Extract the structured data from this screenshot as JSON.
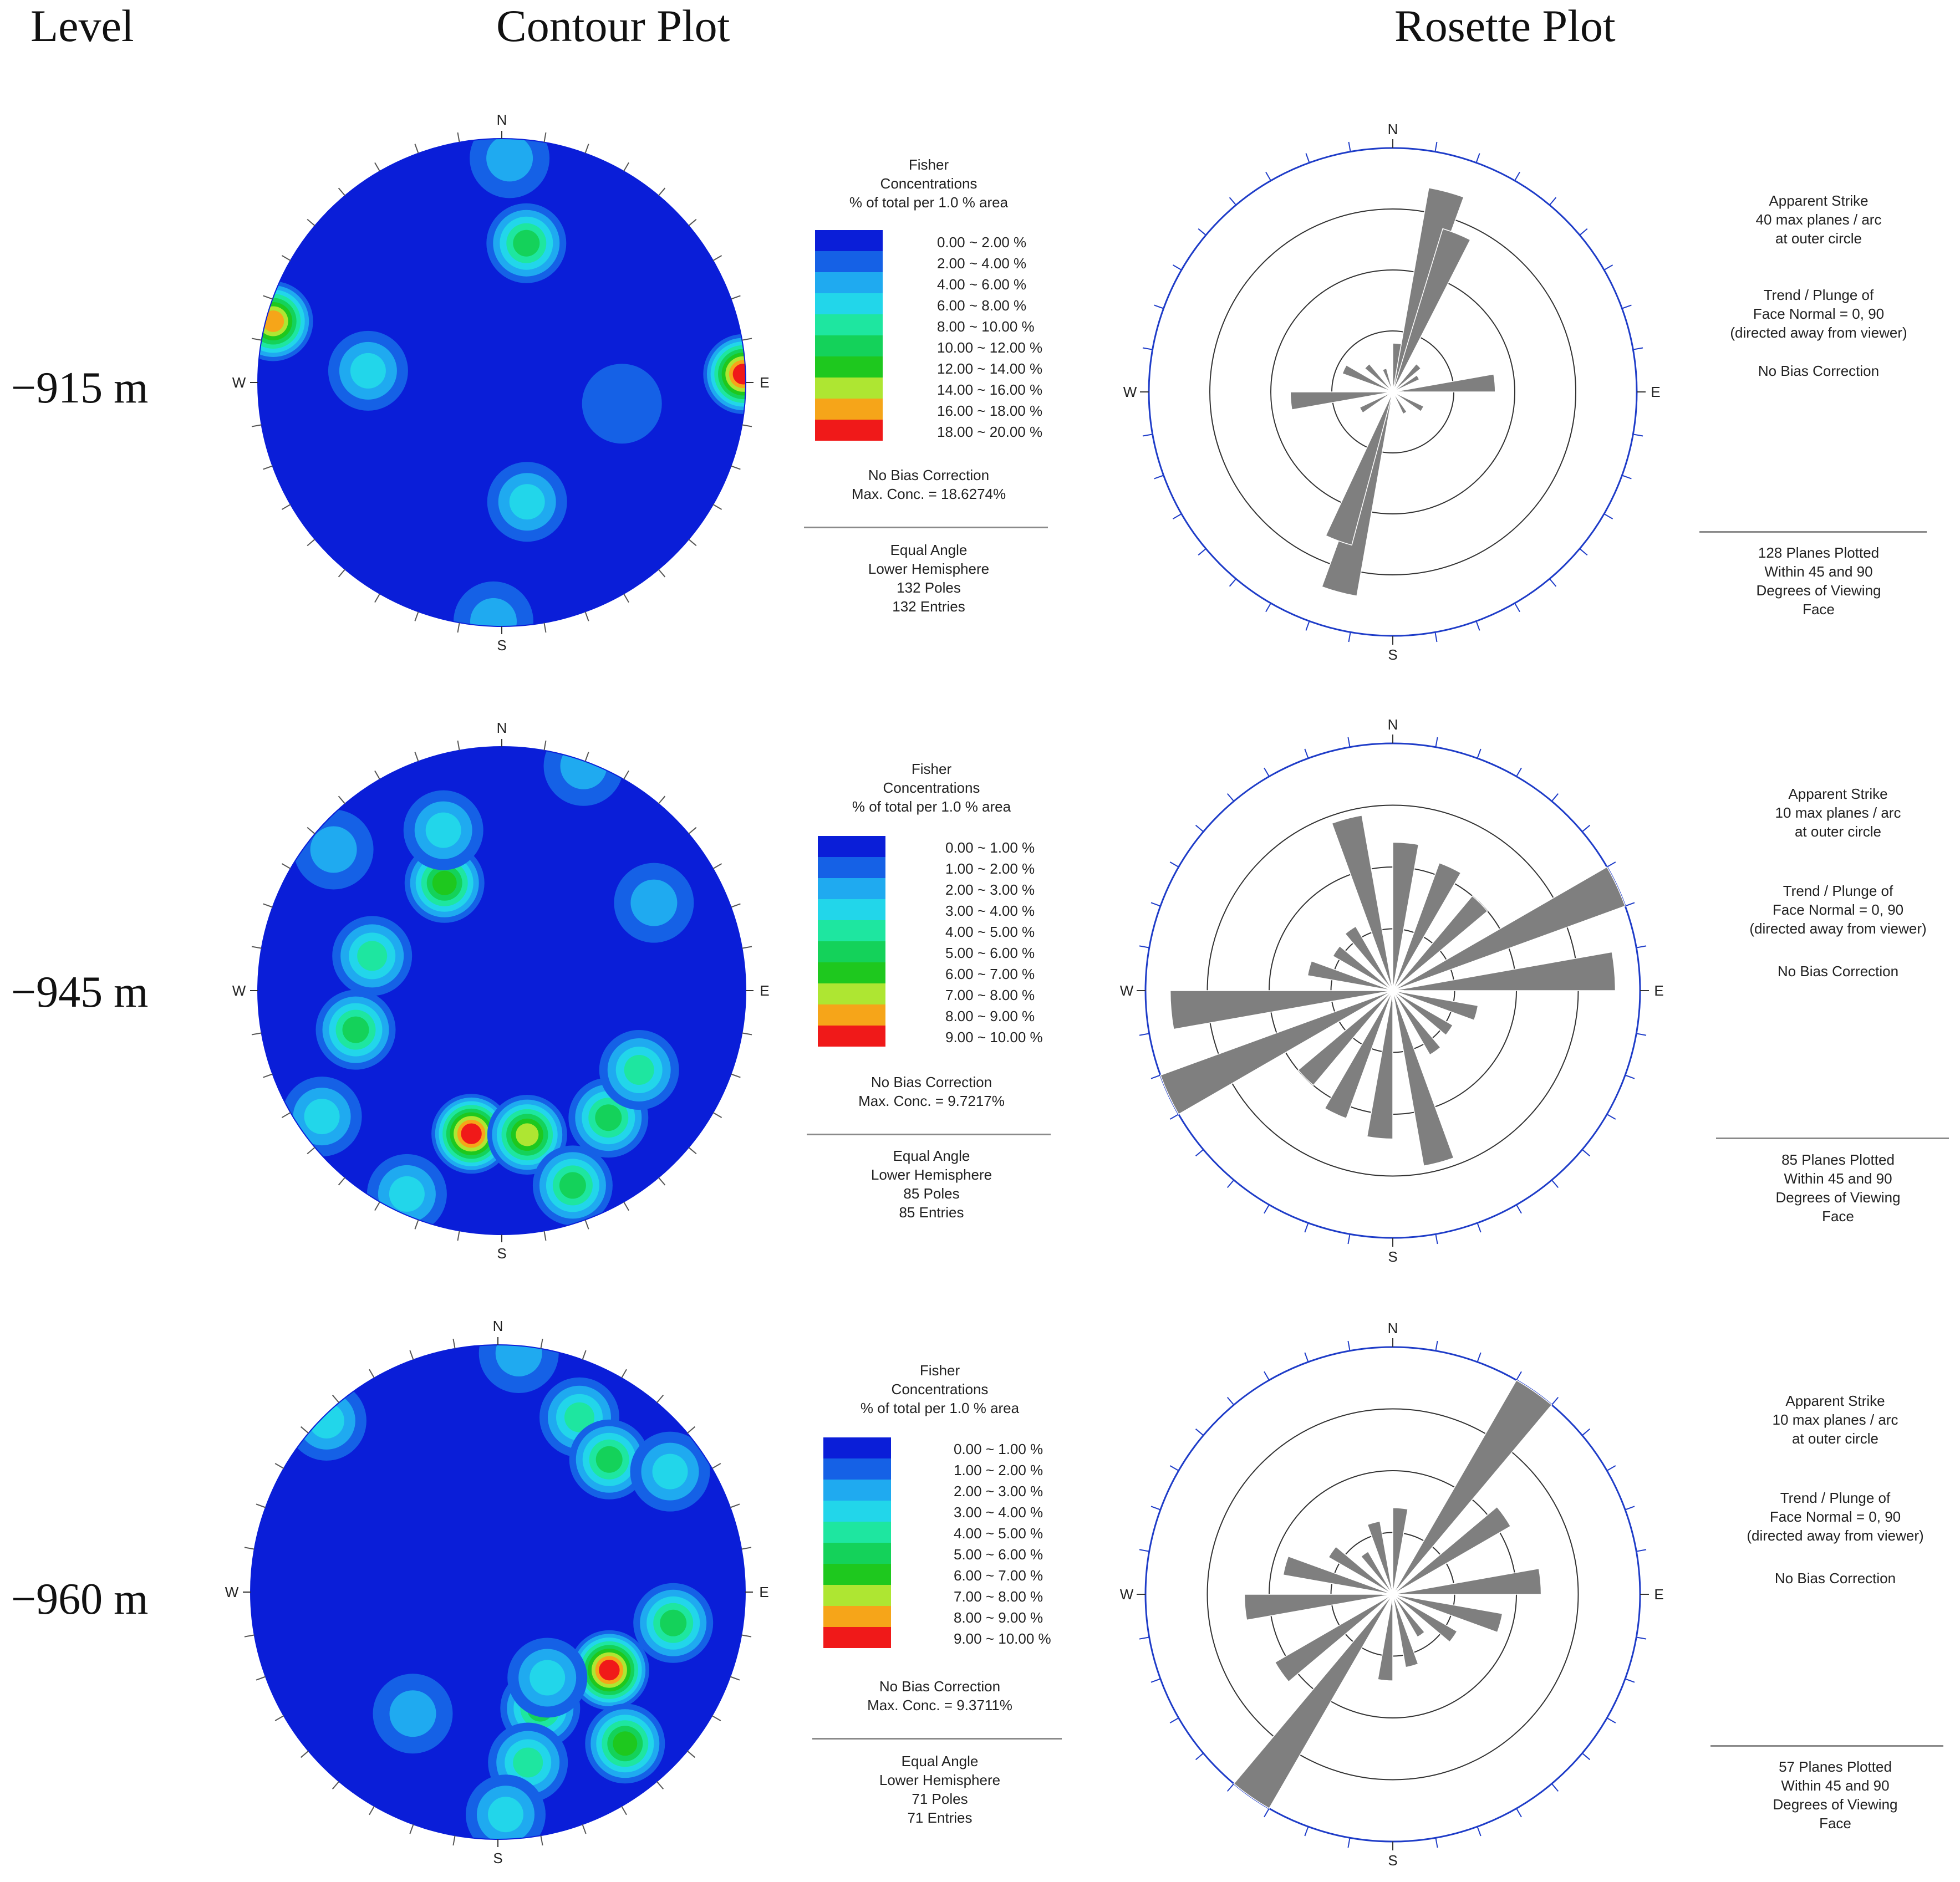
{
  "headers": {
    "level": "Level",
    "contour": "Contour Plot",
    "rosette": "Rosette Plot"
  },
  "colors": {
    "contour_scale": [
      "#0a1ed8",
      "#1561e6",
      "#1faaf0",
      "#22d6ea",
      "#1ee6a0",
      "#14d25a",
      "#1ec81e",
      "#aee632",
      "#f6a519",
      "#f01919"
    ],
    "rose_petal": "#7f7f7f",
    "outer_ring": "#1e3cc8",
    "ring": "#333333"
  },
  "compass": {
    "n": "N",
    "s": "S",
    "e": "E",
    "w": "W"
  },
  "rows": [
    {
      "level": "−915 m",
      "legend_title": [
        "Fisher",
        "Concentrations",
        "% of total per 1.0 % area"
      ],
      "legend_ranges": [
        "0.00 ~  2.00 %",
        "2.00 ~  4.00 %",
        "4.00 ~  6.00 %",
        "6.00 ~  8.00 %",
        "8.00 ~ 10.00 %",
        "10.00 ~ 12.00 %",
        "12.00 ~ 14.00 %",
        "14.00 ~ 16.00 %",
        "16.00 ~ 18.00 %",
        "18.00 ~ 20.00 %"
      ],
      "bias": "No Bias Correction",
      "max_conc": "Max. Conc. = 18.6274%",
      "projection": [
        "Equal Angle",
        "Lower Hemisphere",
        "132 Poles",
        "132 Entries"
      ],
      "rose_info_top": [
        "Apparent Strike",
        "40 max planes / arc",
        "at outer circle"
      ],
      "rose_info_trend": [
        "Trend / Plunge of",
        "Face Normal =   0, 90",
        "(directed away from viewer)"
      ],
      "rose_bias": "No Bias Correction",
      "rose_info_bottom": [
        "128 Planes Plotted",
        "Within 45 and 90",
        "Degrees of Viewing",
        "Face"
      ],
      "contour_clusters": [
        {
          "trend": 88,
          "r": 0.99,
          "peak": 9
        },
        {
          "trend": 285,
          "r": 0.97,
          "peak": 8
        },
        {
          "trend": 2,
          "r": 0.92,
          "peak": 2
        },
        {
          "trend": 10,
          "r": 0.58,
          "peak": 5
        },
        {
          "trend": 100,
          "r": 0.5,
          "peak": 1
        },
        {
          "trend": 168,
          "r": 0.5,
          "peak": 3
        },
        {
          "trend": 275,
          "r": 0.55,
          "peak": 3
        },
        {
          "trend": 182,
          "r": 0.98,
          "peak": 2
        }
      ],
      "rose_petals": [
        {
          "strike": 15,
          "length": 0.85
        },
        {
          "strike": 22,
          "length": 0.7
        },
        {
          "strike": 195,
          "length": 0.85
        },
        {
          "strike": 200,
          "length": 0.65
        },
        {
          "strike": 85,
          "length": 0.42
        },
        {
          "strike": 265,
          "length": 0.42
        },
        {
          "strike": 5,
          "length": 0.2
        },
        {
          "strike": 45,
          "length": 0.15
        },
        {
          "strike": 60,
          "length": 0.12
        },
        {
          "strike": 120,
          "length": 0.14
        },
        {
          "strike": 150,
          "length": 0.1
        },
        {
          "strike": 240,
          "length": 0.15
        },
        {
          "strike": 295,
          "length": 0.22
        },
        {
          "strike": 315,
          "length": 0.15
        },
        {
          "strike": 340,
          "length": 0.1
        }
      ]
    },
    {
      "level": "−945 m",
      "legend_title": [
        "Fisher",
        "Concentrations",
        "% of total per 1.0 % area"
      ],
      "legend_ranges": [
        "0.00 ~  1.00 %",
        "1.00 ~  2.00 %",
        "2.00 ~  3.00 %",
        "3.00 ~  4.00 %",
        "4.00 ~  5.00 %",
        "5.00 ~  6.00 %",
        "6.00 ~  7.00 %",
        "7.00 ~  8.00 %",
        "8.00 ~  9.00 %",
        "9.00 ~ 10.00 %"
      ],
      "bias": "No Bias Correction",
      "max_conc": "Max. Conc. = 9.7217%",
      "projection": [
        "Equal Angle",
        "Lower Hemisphere",
        "85 Poles",
        "85 Entries"
      ],
      "rose_info_top": [
        "Apparent Strike",
        "10 max planes / arc",
        "at outer circle"
      ],
      "rose_info_trend": [
        "Trend / Plunge of",
        "Face Normal =   0, 90",
        "(directed away from viewer)"
      ],
      "rose_bias": "No Bias Correction",
      "rose_info_bottom": [
        "85 Planes Plotted",
        "Within 45 and 90",
        "Degrees of Viewing",
        "Face"
      ],
      "contour_clusters": [
        {
          "trend": 332,
          "r": 0.5,
          "peak": 6
        },
        {
          "trend": 340,
          "r": 0.7,
          "peak": 3
        },
        {
          "trend": 285,
          "r": 0.55,
          "peak": 4
        },
        {
          "trend": 255,
          "r": 0.62,
          "peak": 5
        },
        {
          "trend": 192,
          "r": 0.6,
          "peak": 9
        },
        {
          "trend": 170,
          "r": 0.6,
          "peak": 7
        },
        {
          "trend": 160,
          "r": 0.85,
          "peak": 5
        },
        {
          "trend": 140,
          "r": 0.68,
          "peak": 5
        },
        {
          "trend": 120,
          "r": 0.65,
          "peak": 4
        },
        {
          "trend": 60,
          "r": 0.72,
          "peak": 2
        },
        {
          "trend": 20,
          "r": 0.98,
          "peak": 2
        },
        {
          "trend": 310,
          "r": 0.9,
          "peak": 2
        },
        {
          "trend": 235,
          "r": 0.9,
          "peak": 3
        },
        {
          "trend": 205,
          "r": 0.92,
          "peak": 3
        }
      ],
      "rose_petals": [
        {
          "strike": 65,
          "length": 1.0
        },
        {
          "strike": 245,
          "length": 1.0
        },
        {
          "strike": 85,
          "length": 0.9
        },
        {
          "strike": 265,
          "length": 0.9
        },
        {
          "strike": 345,
          "length": 0.72
        },
        {
          "strike": 165,
          "length": 0.72
        },
        {
          "strike": 5,
          "length": 0.6
        },
        {
          "strike": 185,
          "length": 0.6
        },
        {
          "strike": 25,
          "length": 0.55
        },
        {
          "strike": 205,
          "length": 0.55
        },
        {
          "strike": 45,
          "length": 0.5
        },
        {
          "strike": 225,
          "length": 0.5
        },
        {
          "strike": 105,
          "length": 0.35
        },
        {
          "strike": 285,
          "length": 0.35
        },
        {
          "strike": 125,
          "length": 0.28
        },
        {
          "strike": 305,
          "length": 0.28
        },
        {
          "strike": 145,
          "length": 0.3
        },
        {
          "strike": 325,
          "length": 0.3
        }
      ]
    },
    {
      "level": "−960 m",
      "legend_title": [
        "Fisher",
        "Concentrations",
        "% of total per 1.0 % area"
      ],
      "legend_ranges": [
        "0.00 ~  1.00 %",
        "1.00 ~  2.00 %",
        "2.00 ~  3.00 %",
        "3.00 ~  4.00 %",
        "4.00 ~  5.00 %",
        "5.00 ~  6.00 %",
        "6.00 ~  7.00 %",
        "7.00 ~  8.00 %",
        "8.00 ~  9.00 %",
        "9.00 ~ 10.00 %"
      ],
      "bias": "No Bias Correction",
      "max_conc": "Max. Conc. = 9.3711%",
      "projection": [
        "Equal Angle",
        "Lower Hemisphere",
        "71 Poles",
        "71 Entries"
      ],
      "rose_info_top": [
        "Apparent Strike",
        "10 max planes / arc",
        "at outer circle"
      ],
      "rose_info_trend": [
        "Trend / Plunge of",
        "Face Normal =   0, 90",
        "(directed away from viewer)"
      ],
      "rose_bias": "No Bias Correction",
      "rose_info_bottom": [
        "57 Planes Plotted",
        "Within 45 and 90",
        "Degrees of Viewing",
        "Face"
      ],
      "contour_clusters": [
        {
          "trend": 25,
          "r": 0.78,
          "peak": 4
        },
        {
          "trend": 40,
          "r": 0.7,
          "peak": 5
        },
        {
          "trend": 55,
          "r": 0.85,
          "peak": 3
        },
        {
          "trend": 100,
          "r": 0.72,
          "peak": 5
        },
        {
          "trend": 125,
          "r": 0.55,
          "peak": 9
        },
        {
          "trend": 140,
          "r": 0.8,
          "peak": 6
        },
        {
          "trend": 160,
          "r": 0.5,
          "peak": 5
        },
        {
          "trend": 170,
          "r": 0.7,
          "peak": 4
        },
        {
          "trend": 150,
          "r": 0.4,
          "peak": 3
        },
        {
          "trend": 178,
          "r": 0.9,
          "peak": 3
        },
        {
          "trend": 215,
          "r": 0.6,
          "peak": 2
        },
        {
          "trend": 315,
          "r": 0.98,
          "peak": 3
        },
        {
          "trend": 5,
          "r": 0.97,
          "peak": 2
        }
      ],
      "rose_petals": [
        {
          "strike": 35,
          "length": 1.0
        },
        {
          "strike": 215,
          "length": 1.0
        },
        {
          "strike": 55,
          "length": 0.55
        },
        {
          "strike": 235,
          "length": 0.55
        },
        {
          "strike": 85,
          "length": 0.6
        },
        {
          "strike": 265,
          "length": 0.6
        },
        {
          "strike": 105,
          "length": 0.45
        },
        {
          "strike": 285,
          "length": 0.45
        },
        {
          "strike": 125,
          "length": 0.3
        },
        {
          "strike": 305,
          "length": 0.3
        },
        {
          "strike": 165,
          "length": 0.3
        },
        {
          "strike": 345,
          "length": 0.3
        },
        {
          "strike": 5,
          "length": 0.35
        },
        {
          "strike": 185,
          "length": 0.35
        },
        {
          "strike": 145,
          "length": 0.2
        },
        {
          "strike": 325,
          "length": 0.2
        }
      ]
    }
  ]
}
